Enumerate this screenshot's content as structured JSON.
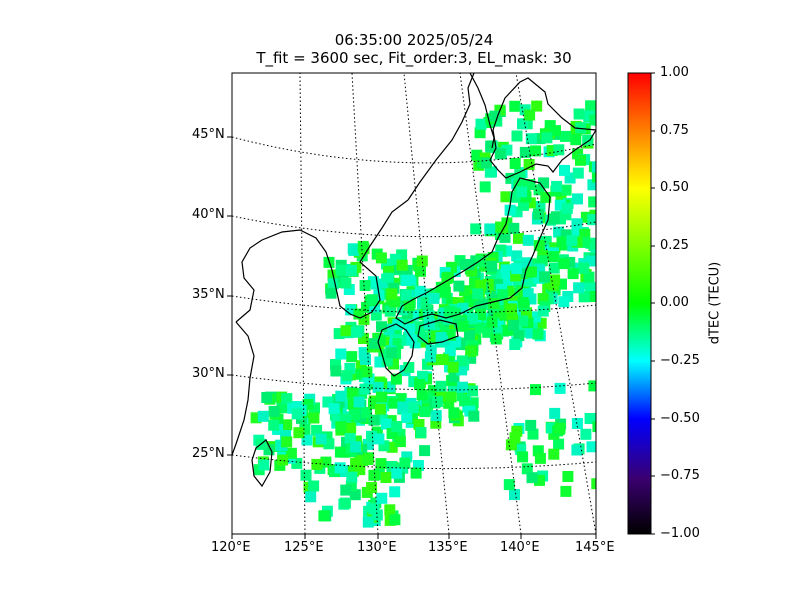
{
  "title": {
    "line1": "06:35:00 2025/05/24",
    "line2": "T_fit = 3600 sec, Fit_order:3, EL_mask: 30"
  },
  "map": {
    "lon_labels": [
      "120°E",
      "125°E",
      "130°E",
      "135°E",
      "140°E",
      "145°E"
    ],
    "lat_labels": [
      "25°N",
      "30°N",
      "35°N",
      "40°N",
      "45°N"
    ],
    "region": "Japan and surroundings",
    "lon_range": [
      120,
      145
    ],
    "lat_range": [
      20,
      49
    ],
    "coastline_color": "#000000",
    "grid_style": "dotted"
  },
  "colorbar": {
    "label": "dTEC (TECU)",
    "ticks": [
      "1.00",
      "0.75",
      "0.50",
      "0.25",
      "0.00",
      "−0.25",
      "−0.50",
      "−0.75",
      "−1.00"
    ],
    "range": [
      -1.0,
      1.0
    ],
    "colors": [
      "#000000",
      "#3a0070",
      "#0000ff",
      "#00ffff",
      "#00ff00",
      "#ffff00",
      "#ff8000",
      "#ff0000"
    ]
  },
  "data_summary": {
    "dominant_value_range_tecu": [
      -0.25,
      0.25
    ],
    "predominant_color": "green"
  }
}
